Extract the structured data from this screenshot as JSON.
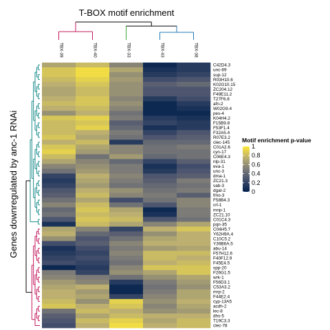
{
  "chart_data": {
    "type": "heatmap",
    "title": "T-BOX motif enrichment",
    "ylabel": "Genes downregulated by anc-1 RNAi",
    "columns": [
      "TBX-39",
      "TBX-40",
      "TBX-33",
      "TBX-43",
      "TBX-38"
    ],
    "rows": [
      "C42D4.3",
      "unc-89",
      "sup-12",
      "R03H10.6",
      "K02G10.15",
      "ZC204.12",
      "F49E11.2",
      "T27F6.8",
      "afn-2",
      "W02G9.4",
      "pes-4",
      "K04H4.2",
      "F15B9.8",
      "F53F1.4",
      "F32A5.4",
      "R07E3.2",
      "clec-145",
      "C01A2.6",
      "cyn-17",
      "C06E4.3",
      "nlp-31",
      "eva-1",
      "unc-3",
      "dma-1",
      "ZC21.3",
      "vab-3",
      "dgat-2",
      "fmo-3",
      "F58B4.3",
      "crl-1",
      "mnp-1",
      "ZC21.10",
      "C01C4.3",
      "pqn-35",
      "C04H5.7",
      "Y62H9A.4",
      "C10C5.2",
      "Y39B6A.5",
      "abu-14",
      "F57H12.6",
      "F40F12.9",
      "F45E4.5",
      "spp-20",
      "F26G1.5",
      "wrk-1",
      "F56D3.1",
      "C53A3.2",
      "mrp-2",
      "F44E2.4",
      "cyp-13A5",
      "acdh-2",
      "lec-8",
      "dhs-5",
      "T19C3.3",
      "clec-78"
    ],
    "values": [
      [
        0.7,
        0.8,
        0.55,
        0.05,
        0.15
      ],
      [
        0.85,
        0.95,
        0.7,
        0.1,
        0.15
      ],
      [
        0.85,
        0.95,
        0.6,
        0.15,
        0.2
      ],
      [
        0.8,
        0.9,
        0.65,
        0.25,
        0.3
      ],
      [
        0.75,
        0.85,
        0.6,
        0.35,
        0.4
      ],
      [
        0.7,
        0.8,
        0.6,
        0.3,
        0.3
      ],
      [
        0.7,
        0.8,
        0.6,
        0.3,
        0.3
      ],
      [
        0.75,
        0.85,
        0.55,
        0.15,
        0.25
      ],
      [
        0.8,
        0.85,
        0.6,
        0.05,
        0.15
      ],
      [
        0.75,
        0.8,
        0.55,
        0.05,
        0.1
      ],
      [
        0.6,
        0.75,
        0.45,
        0.05,
        0.05
      ],
      [
        0.85,
        0.9,
        0.5,
        0.15,
        0.1
      ],
      [
        0.8,
        0.85,
        0.35,
        0.2,
        0.15
      ],
      [
        0.8,
        0.9,
        0.4,
        0.1,
        0.15
      ],
      [
        0.8,
        0.75,
        0.5,
        0.2,
        0.3
      ],
      [
        0.85,
        0.7,
        0.45,
        0.3,
        0.35
      ],
      [
        0.75,
        0.8,
        0.15,
        0.4,
        0.4
      ],
      [
        0.85,
        0.7,
        0.55,
        0.45,
        0.5
      ],
      [
        0.9,
        0.65,
        0.55,
        0.45,
        0.45
      ],
      [
        0.8,
        0.45,
        0.65,
        0.4,
        0.45
      ],
      [
        0.7,
        0.55,
        0.4,
        0.2,
        0.35
      ],
      [
        0.55,
        0.6,
        0.5,
        0.1,
        0.25
      ],
      [
        0.45,
        0.65,
        0.5,
        0.15,
        0.3
      ],
      [
        0.2,
        0.75,
        0.55,
        0.3,
        0.35
      ],
      [
        0.15,
        0.7,
        0.5,
        0.35,
        0.5
      ],
      [
        0.2,
        0.65,
        0.45,
        0.4,
        0.45
      ],
      [
        0.3,
        0.75,
        0.6,
        0.45,
        0.5
      ],
      [
        0.35,
        0.8,
        0.55,
        0.5,
        0.35
      ],
      [
        0.45,
        0.7,
        0.25,
        0.45,
        0.55
      ],
      [
        0.55,
        0.8,
        0.45,
        0.3,
        0.55
      ],
      [
        0.4,
        0.85,
        0.7,
        0.05,
        0.5
      ],
      [
        0.45,
        0.8,
        0.75,
        0.1,
        0.5
      ],
      [
        0.3,
        0.85,
        0.8,
        0.3,
        0.45
      ],
      [
        0.1,
        0.8,
        0.7,
        0.55,
        0.7
      ],
      [
        0.7,
        0.55,
        0.2,
        0.75,
        0.85
      ],
      [
        0.75,
        0.4,
        0.35,
        0.6,
        0.75
      ],
      [
        0.6,
        0.3,
        0.45,
        0.7,
        0.75
      ],
      [
        0.25,
        0.35,
        0.55,
        0.75,
        0.75
      ],
      [
        0.1,
        0.25,
        0.5,
        0.65,
        0.7
      ],
      [
        0.15,
        0.2,
        0.55,
        0.8,
        0.8
      ],
      [
        0.2,
        0.25,
        0.5,
        0.8,
        0.75
      ],
      [
        0.25,
        0.2,
        0.45,
        0.75,
        0.8
      ],
      [
        0.05,
        0.15,
        0.55,
        0.85,
        0.85
      ],
      [
        0.5,
        0.2,
        0.6,
        0.7,
        0.85
      ],
      [
        0.55,
        0.5,
        0.45,
        0.6,
        0.7
      ],
      [
        0.65,
        0.55,
        0.15,
        0.5,
        0.65
      ],
      [
        0.7,
        0.75,
        0.05,
        0.45,
        0.6
      ],
      [
        0.75,
        0.65,
        0.05,
        0.5,
        0.7
      ],
      [
        0.75,
        0.7,
        0.2,
        0.55,
        0.7
      ],
      [
        0.8,
        0.6,
        0.9,
        0.6,
        0.75
      ],
      [
        0.85,
        0.75,
        0.85,
        0.55,
        0.7
      ],
      [
        0.45,
        0.8,
        0.75,
        0.6,
        0.65
      ],
      [
        0.35,
        0.7,
        0.8,
        0.75,
        0.75
      ],
      [
        0.3,
        0.8,
        0.9,
        0.7,
        0.8
      ],
      [
        0.25,
        0.75,
        0.95,
        0.75,
        0.8
      ]
    ],
    "legend": {
      "title": "Motif enrichment p-value",
      "ticks": [
        "1",
        "0.8",
        "0.6",
        "0.4",
        "0.2",
        "0"
      ],
      "tick_values": [
        1,
        0.8,
        0.6,
        0.4,
        0.2,
        0
      ],
      "range": [
        0,
        1
      ]
    },
    "colormap": [
      "#00204c",
      "#414d6b",
      "#7c7b78",
      "#bcaf6f",
      "#fee838"
    ],
    "row_dendrogram_colors": [
      "#1a8a8a",
      "#c2185b"
    ],
    "row_cluster_split_index": 34,
    "col_dendrogram_colors": [
      "#c2185b",
      "#3aa63a",
      "#1f78b4"
    ],
    "col_cluster_sizes": [
      2,
      1,
      2
    ]
  }
}
